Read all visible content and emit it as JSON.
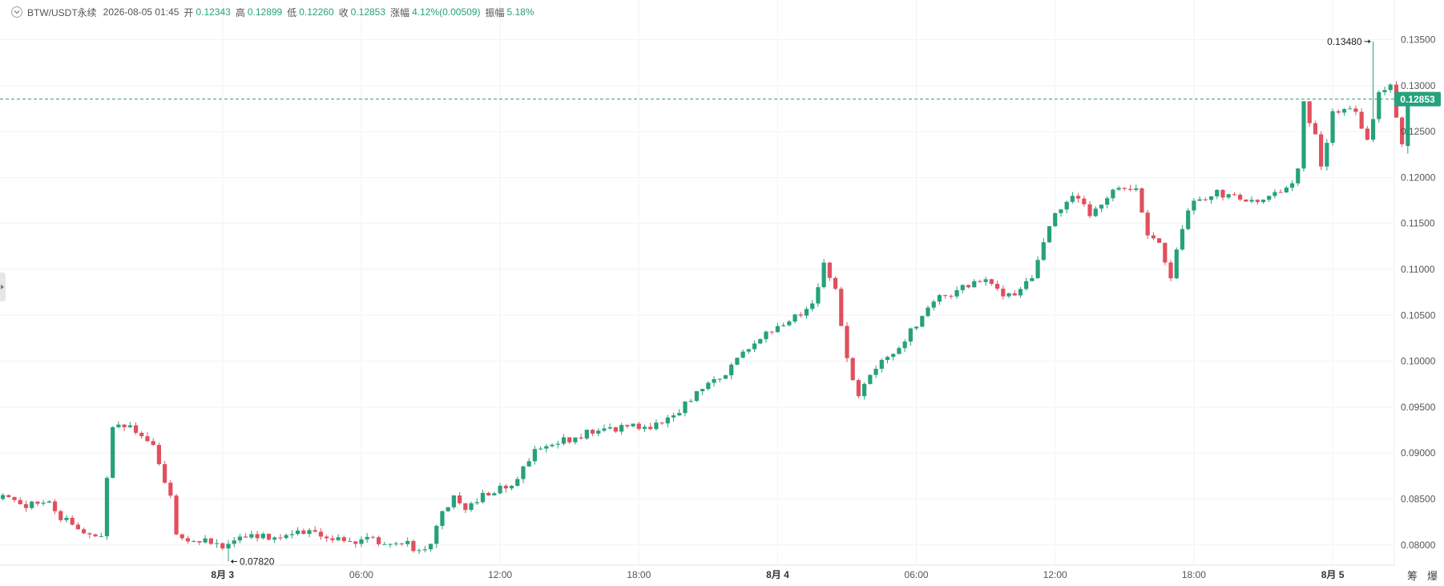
{
  "header": {
    "symbol": "BTW/USDT永续",
    "timestamp": "2026-08-05 01:45",
    "open_label": "开",
    "open": "0.12343",
    "high_label": "高",
    "high": "0.12899",
    "low_label": "低",
    "low": "0.12260",
    "close_label": "收",
    "close": "0.12853",
    "change_label": "涨幅",
    "change": "4.12%(0.00509)",
    "amplitude_label": "振幅",
    "amplitude": "5.18%"
  },
  "side_tabs": [
    "筹",
    "爆"
  ],
  "colors": {
    "up": "#26a17b",
    "down": "#e0505e",
    "grid": "#f3f3f3",
    "axis_text": "#555555",
    "price_tag": "#26a17b"
  },
  "chart_data": {
    "type": "candlestick",
    "interval_minutes": 15,
    "x_ticks": [
      {
        "label": "8月 3",
        "bar": 38,
        "bold": true
      },
      {
        "label": "06:00",
        "bar": 62
      },
      {
        "label": "12:00",
        "bar": 86
      },
      {
        "label": "18:00",
        "bar": 110
      },
      {
        "label": "8月 4",
        "bar": 134,
        "bold": true
      },
      {
        "label": "06:00",
        "bar": 158
      },
      {
        "label": "12:00",
        "bar": 182
      },
      {
        "label": "18:00",
        "bar": 206
      },
      {
        "label": "8月 5",
        "bar": 230,
        "bold": true
      },
      {
        "label": "06:00",
        "bar": 254
      },
      {
        "label": "12:00",
        "bar": 278
      }
    ],
    "y_ticks": [
      "0.13500",
      "0.13000",
      "0.12500",
      "0.12000",
      "0.11500",
      "0.11000",
      "0.10500",
      "0.10000",
      "0.09500",
      "0.09000",
      "0.08500",
      "0.08000"
    ],
    "ylim": [
      0.0778,
      0.1367
    ],
    "last_price": "0.12853",
    "annotations": [
      {
        "text": "0.13480",
        "price": 0.1348,
        "bar": 237,
        "arrow": "right"
      },
      {
        "text": "0.07820",
        "price": 0.0782,
        "bar": 39,
        "arrow": "left"
      }
    ],
    "anchors": [
      [
        0,
        0.085
      ],
      [
        6,
        0.0842
      ],
      [
        8,
        0.0845
      ],
      [
        10,
        0.083
      ],
      [
        14,
        0.0815
      ],
      [
        16,
        0.081
      ],
      [
        17,
        0.0805
      ],
      [
        18,
        0.087
      ],
      [
        19,
        0.0928
      ],
      [
        22,
        0.093
      ],
      [
        24,
        0.0918
      ],
      [
        26,
        0.0905
      ],
      [
        28,
        0.0865
      ],
      [
        29,
        0.085
      ],
      [
        30,
        0.081
      ],
      [
        38,
        0.08
      ],
      [
        42,
        0.081
      ],
      [
        46,
        0.0808
      ],
      [
        50,
        0.0815
      ],
      [
        56,
        0.081
      ],
      [
        60,
        0.0805
      ],
      [
        66,
        0.0805
      ],
      [
        70,
        0.08
      ],
      [
        72,
        0.0792
      ],
      [
        74,
        0.0802
      ],
      [
        76,
        0.0835
      ],
      [
        78,
        0.0855
      ],
      [
        80,
        0.084
      ],
      [
        84,
        0.0858
      ],
      [
        88,
        0.0866
      ],
      [
        92,
        0.0905
      ],
      [
        96,
        0.0912
      ],
      [
        100,
        0.092
      ],
      [
        104,
        0.0925
      ],
      [
        108,
        0.0928
      ],
      [
        112,
        0.093
      ],
      [
        116,
        0.094
      ],
      [
        120,
        0.0965
      ],
      [
        124,
        0.098
      ],
      [
        128,
        0.101
      ],
      [
        132,
        0.103
      ],
      [
        136,
        0.1045
      ],
      [
        140,
        0.106
      ],
      [
        142,
        0.111
      ],
      [
        144,
        0.108
      ],
      [
        146,
        0.1
      ],
      [
        148,
        0.096
      ],
      [
        150,
        0.0985
      ],
      [
        154,
        0.101
      ],
      [
        158,
        0.104
      ],
      [
        162,
        0.107
      ],
      [
        166,
        0.108
      ],
      [
        170,
        0.109
      ],
      [
        174,
        0.107
      ],
      [
        178,
        0.109
      ],
      [
        180,
        0.113
      ],
      [
        182,
        0.1165
      ],
      [
        186,
        0.118
      ],
      [
        188,
        0.116
      ],
      [
        192,
        0.1188
      ],
      [
        196,
        0.119
      ],
      [
        198,
        0.114
      ],
      [
        200,
        0.1125
      ],
      [
        202,
        0.109
      ],
      [
        204,
        0.1145
      ],
      [
        206,
        0.1175
      ],
      [
        210,
        0.1185
      ],
      [
        214,
        0.1175
      ],
      [
        218,
        0.1178
      ],
      [
        222,
        0.1185
      ],
      [
        224,
        0.121
      ],
      [
        225,
        0.128
      ],
      [
        227,
        0.1245
      ],
      [
        228,
        0.121
      ],
      [
        230,
        0.127
      ],
      [
        232,
        0.1278
      ],
      [
        234,
        0.127
      ],
      [
        236,
        0.1245
      ],
      [
        238,
        0.129
      ],
      [
        240,
        0.13
      ],
      [
        241,
        0.1265
      ],
      [
        242,
        0.1235
      ],
      [
        243,
        0.1285
      ]
    ],
    "last_candle": {
      "open": 0.12343,
      "high": 0.12899,
      "low": 0.1226,
      "close": 0.12853
    }
  }
}
